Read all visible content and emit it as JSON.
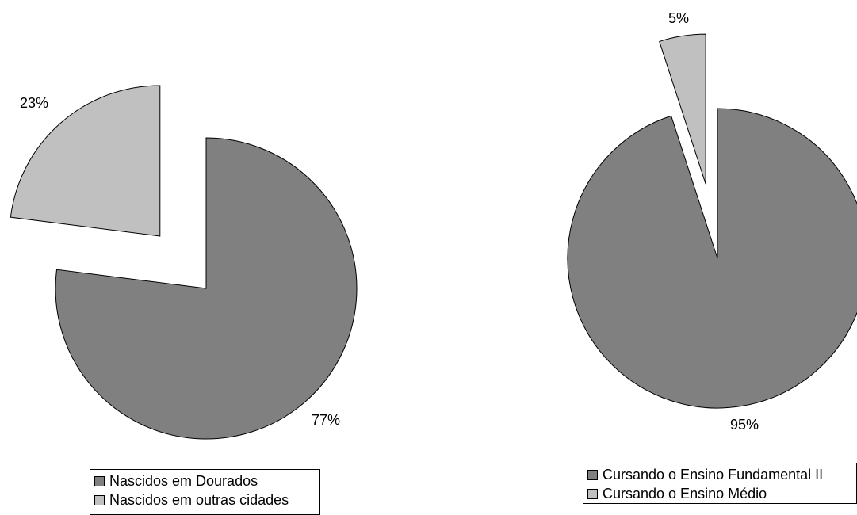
{
  "chart_data": [
    {
      "type": "pie",
      "title": "",
      "slices": [
        {
          "label": "Nascidos em Dourados",
          "value": 77,
          "value_label": "77%",
          "color": "#808080",
          "exploded": false
        },
        {
          "label": "Nascidos em outras cidades",
          "value": 23,
          "value_label": "23%",
          "color": "#c0c0c0",
          "exploded": true
        }
      ],
      "legend_position": "bottom-center"
    },
    {
      "type": "pie",
      "title": "",
      "slices": [
        {
          "label": "Cursando o Ensino Fundamental II",
          "value": 95,
          "value_label": "95%",
          "color": "#808080",
          "exploded": false
        },
        {
          "label": "Cursando o Ensino Médio",
          "value": 5,
          "value_label": "5%",
          "color": "#c0c0c0",
          "exploded": true
        }
      ],
      "legend_position": "bottom-center"
    }
  ]
}
